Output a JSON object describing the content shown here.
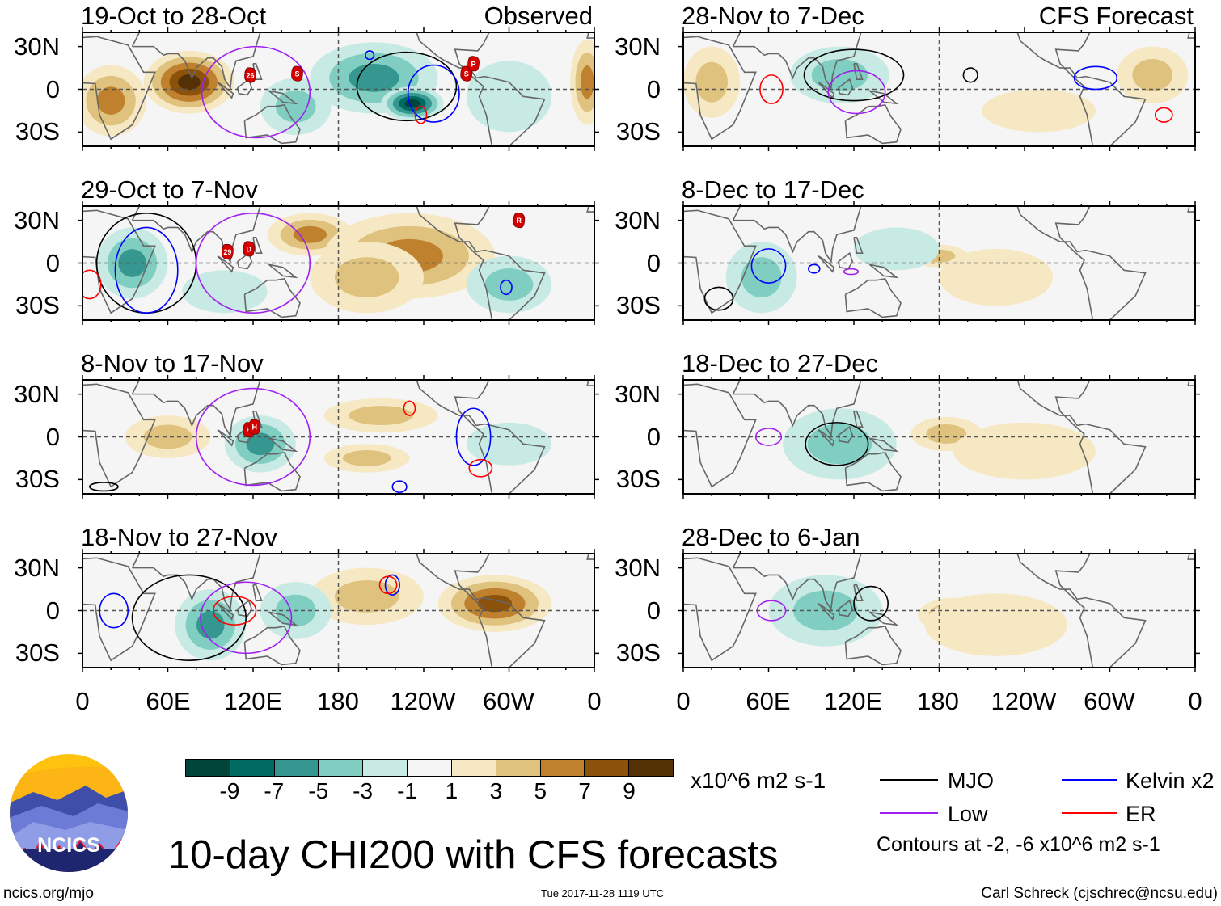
{
  "figure": {
    "title": "10-day CHI200 with CFS forecasts",
    "units": "x10^6 m2 s-1",
    "contour_note": "Contours at -2, -6 x10^6 m2 s-1",
    "site": "ncics.org/mjo",
    "timestamp": "Tue 2017-11-28 1119 UTC",
    "author": "Carl Schreck (cjschrec@ncsu.edu)",
    "logo_text": "NCICS",
    "observed_label": "Observed",
    "forecast_label": "CFS Forecast"
  },
  "axes": {
    "lat_labels": [
      "30N",
      "0",
      "30S"
    ],
    "lon_labels": [
      "0",
      "60E",
      "120E",
      "180",
      "120W",
      "60W",
      "0"
    ]
  },
  "colorbar": {
    "colors": [
      "#00443a",
      "#006b61",
      "#35978f",
      "#80cdc1",
      "#c7eae5",
      "#f5f5f5",
      "#f6e8c3",
      "#dfc27d",
      "#bf812d",
      "#8c510a",
      "#543005"
    ],
    "labels": [
      "-9",
      "-7",
      "-5",
      "-3",
      "-1",
      "1",
      "3",
      "5",
      "7",
      "9"
    ]
  },
  "legend": [
    {
      "label": "MJO",
      "color": "#000000"
    },
    {
      "label": "Kelvin x2",
      "color": "#0000ff"
    },
    {
      "label": "Low",
      "color": "#a020f0"
    },
    {
      "label": "ER",
      "color": "#ff0000"
    }
  ],
  "chart_data": {
    "type": "map",
    "lon_range": [
      0,
      360
    ],
    "lat_range": [
      -40,
      40
    ],
    "panels": [
      {
        "title": "19-Oct to 28-Oct",
        "tag": "observed",
        "anomalies": [
          {
            "lon": 75,
            "lat": 5,
            "v": 9,
            "rx": 32,
            "ry": 22
          },
          {
            "lon": 20,
            "lat": -8,
            "v": 5,
            "rx": 25,
            "ry": 25
          },
          {
            "lon": 355,
            "lat": 5,
            "v": 5,
            "rx": 12,
            "ry": 30
          },
          {
            "lon": 205,
            "lat": 8,
            "v": -5,
            "rx": 45,
            "ry": 25
          },
          {
            "lon": 232,
            "lat": -10,
            "v": -9,
            "rx": 22,
            "ry": 12
          },
          {
            "lon": 150,
            "lat": -12,
            "v": -3,
            "rx": 25,
            "ry": 20
          },
          {
            "lon": 300,
            "lat": -5,
            "v": -1,
            "rx": 30,
            "ry": 25
          }
        ],
        "contours": [
          {
            "kind": "MJO",
            "lon": 228,
            "lat": 2,
            "rx": 35,
            "ry": 24
          },
          {
            "kind": "Low",
            "lon": 122,
            "lat": -2,
            "rx": 38,
            "ry": 32
          },
          {
            "kind": "Kelvin",
            "lon": 247,
            "lat": -3,
            "rx": 18,
            "ry": 20
          },
          {
            "kind": "ER",
            "lon": 238,
            "lat": -18,
            "rx": 4,
            "ry": 6
          },
          {
            "kind": "Kelvin",
            "lon": 202,
            "lat": 24,
            "rx": 3,
            "ry": 3
          }
        ],
        "storms": [
          {
            "name": "26",
            "lon": 118,
            "lat": 10
          },
          {
            "name": "S",
            "lon": 151,
            "lat": 11
          },
          {
            "name": "S",
            "lon": 270,
            "lat": 11
          },
          {
            "name": "P",
            "lon": 275,
            "lat": 18
          }
        ]
      },
      {
        "title": "29-Oct to 7-Nov",
        "tag": "observed",
        "anomalies": [
          {
            "lon": 35,
            "lat": 0,
            "v": -5,
            "rx": 25,
            "ry": 25
          },
          {
            "lon": 160,
            "lat": 20,
            "v": 5,
            "rx": 30,
            "ry": 15
          },
          {
            "lon": 230,
            "lat": 5,
            "v": 5,
            "rx": 60,
            "ry": 30
          },
          {
            "lon": 200,
            "lat": -10,
            "v": 3,
            "rx": 40,
            "ry": 25
          },
          {
            "lon": 300,
            "lat": -15,
            "v": -3,
            "rx": 30,
            "ry": 20
          },
          {
            "lon": 100,
            "lat": -20,
            "v": -1,
            "rx": 30,
            "ry": 15
          }
        ],
        "contours": [
          {
            "kind": "MJO",
            "lon": 45,
            "lat": 0,
            "rx": 35,
            "ry": 35
          },
          {
            "kind": "Kelvin",
            "lon": 45,
            "lat": -5,
            "rx": 22,
            "ry": 30
          },
          {
            "kind": "Low",
            "lon": 120,
            "lat": 0,
            "rx": 40,
            "ry": 35
          },
          {
            "kind": "ER",
            "lon": 5,
            "lat": -15,
            "rx": 8,
            "ry": 10
          },
          {
            "kind": "Kelvin",
            "lon": 298,
            "lat": -17,
            "rx": 4,
            "ry": 5
          }
        ],
        "storms": [
          {
            "name": "29",
            "lon": 102,
            "lat": 8
          },
          {
            "name": "D",
            "lon": 117,
            "lat": 10
          },
          {
            "name": "R",
            "lon": 307,
            "lat": 30
          }
        ]
      },
      {
        "title": "8-Nov to 17-Nov",
        "tag": "observed",
        "anomalies": [
          {
            "lon": 125,
            "lat": -5,
            "v": -5,
            "rx": 25,
            "ry": 20
          },
          {
            "lon": 60,
            "lat": 0,
            "v": 3,
            "rx": 30,
            "ry": 15
          },
          {
            "lon": 210,
            "lat": 15,
            "v": 3,
            "rx": 40,
            "ry": 12
          },
          {
            "lon": 200,
            "lat": -15,
            "v": 3,
            "rx": 30,
            "ry": 10
          },
          {
            "lon": 300,
            "lat": -5,
            "v": -1,
            "rx": 30,
            "ry": 15
          }
        ],
        "contours": [
          {
            "kind": "Low",
            "lon": 120,
            "lat": 0,
            "rx": 40,
            "ry": 34
          },
          {
            "kind": "Kelvin",
            "lon": 275,
            "lat": 0,
            "rx": 12,
            "ry": 20
          },
          {
            "kind": "ER",
            "lon": 230,
            "lat": 20,
            "rx": 4,
            "ry": 5
          },
          {
            "kind": "ER",
            "lon": 280,
            "lat": -22,
            "rx": 8,
            "ry": 6
          },
          {
            "kind": "MJO",
            "lon": 15,
            "lat": -35,
            "rx": 10,
            "ry": 3
          },
          {
            "kind": "Kelvin",
            "lon": 223,
            "lat": -35,
            "rx": 5,
            "ry": 4
          }
        ],
        "storms": [
          {
            "name": "K",
            "lon": 117,
            "lat": 5
          },
          {
            "name": "H",
            "lon": 121,
            "lat": 7
          }
        ]
      },
      {
        "title": "18-Nov to 27-Nov",
        "tag": "observed",
        "anomalies": [
          {
            "lon": 90,
            "lat": -10,
            "v": -5,
            "rx": 25,
            "ry": 25
          },
          {
            "lon": 290,
            "lat": 5,
            "v": 7,
            "rx": 40,
            "ry": 20
          },
          {
            "lon": 200,
            "lat": 10,
            "v": 3,
            "rx": 40,
            "ry": 20
          },
          {
            "lon": 150,
            "lat": 0,
            "v": -3,
            "rx": 25,
            "ry": 20
          }
        ],
        "contours": [
          {
            "kind": "MJO",
            "lon": 75,
            "lat": -5,
            "rx": 40,
            "ry": 30
          },
          {
            "kind": "Low",
            "lon": 115,
            "lat": -5,
            "rx": 32,
            "ry": 25
          },
          {
            "kind": "ER",
            "lon": 107,
            "lat": 0,
            "rx": 15,
            "ry": 10
          },
          {
            "kind": "Kelvin",
            "lon": 22,
            "lat": 0,
            "rx": 10,
            "ry": 12
          },
          {
            "kind": "Kelvin",
            "lon": 218,
            "lat": 18,
            "rx": 5,
            "ry": 7
          },
          {
            "kind": "ER",
            "lon": 215,
            "lat": 18,
            "rx": 6,
            "ry": 6
          }
        ],
        "storms": []
      },
      {
        "title": "28-Nov to 7-Dec",
        "tag": "forecast",
        "anomalies": [
          {
            "lon": 110,
            "lat": 10,
            "v": -3,
            "rx": 35,
            "ry": 20
          },
          {
            "lon": 20,
            "lat": 5,
            "v": 3,
            "rx": 20,
            "ry": 25
          },
          {
            "lon": 330,
            "lat": 10,
            "v": 3,
            "rx": 25,
            "ry": 20
          },
          {
            "lon": 250,
            "lat": -15,
            "v": 1,
            "rx": 40,
            "ry": 15
          }
        ],
        "contours": [
          {
            "kind": "MJO",
            "lon": 120,
            "lat": 10,
            "rx": 35,
            "ry": 18
          },
          {
            "kind": "Low",
            "lon": 122,
            "lat": -2,
            "rx": 20,
            "ry": 15
          },
          {
            "kind": "ER",
            "lon": 62,
            "lat": 0,
            "rx": 8,
            "ry": 10
          },
          {
            "kind": "MJO",
            "lon": 202,
            "lat": 10,
            "rx": 5,
            "ry": 5
          },
          {
            "kind": "Kelvin",
            "lon": 290,
            "lat": 8,
            "rx": 15,
            "ry": 8
          },
          {
            "kind": "ER",
            "lon": 338,
            "lat": -18,
            "rx": 6,
            "ry": 5
          }
        ],
        "storms": []
      },
      {
        "title": "8-Dec to 17-Dec",
        "tag": "forecast",
        "anomalies": [
          {
            "lon": 55,
            "lat": -10,
            "v": -3,
            "rx": 25,
            "ry": 25
          },
          {
            "lon": 180,
            "lat": 5,
            "v": 3,
            "rx": 20,
            "ry": 8
          },
          {
            "lon": 220,
            "lat": -10,
            "v": 1,
            "rx": 40,
            "ry": 20
          },
          {
            "lon": 150,
            "lat": 10,
            "v": -1,
            "rx": 30,
            "ry": 15
          }
        ],
        "contours": [
          {
            "kind": "Kelvin",
            "lon": 60,
            "lat": -2,
            "rx": 12,
            "ry": 12
          },
          {
            "kind": "MJO",
            "lon": 25,
            "lat": -25,
            "rx": 10,
            "ry": 8
          },
          {
            "kind": "Kelvin",
            "lon": 92,
            "lat": -4,
            "rx": 4,
            "ry": 3
          },
          {
            "kind": "Low",
            "lon": 118,
            "lat": -6,
            "rx": 5,
            "ry": 2
          }
        ],
        "storms": []
      },
      {
        "title": "18-Dec to 27-Dec",
        "tag": "forecast",
        "anomalies": [
          {
            "lon": 110,
            "lat": -5,
            "v": -3,
            "rx": 40,
            "ry": 25
          },
          {
            "lon": 185,
            "lat": 2,
            "v": 3,
            "rx": 25,
            "ry": 12
          },
          {
            "lon": 240,
            "lat": -10,
            "v": 1,
            "rx": 50,
            "ry": 20
          }
        ],
        "contours": [
          {
            "kind": "MJO",
            "lon": 108,
            "lat": -5,
            "rx": 22,
            "ry": 15
          },
          {
            "kind": "Low",
            "lon": 60,
            "lat": 0,
            "rx": 9,
            "ry": 6
          }
        ],
        "storms": []
      },
      {
        "title": "28-Dec to 6-Jan",
        "tag": "forecast",
        "anomalies": [
          {
            "lon": 100,
            "lat": 0,
            "v": -3,
            "rx": 40,
            "ry": 25
          },
          {
            "lon": 190,
            "lat": -3,
            "v": 5,
            "rx": 25,
            "ry": 12
          },
          {
            "lon": 220,
            "lat": -10,
            "v": 1,
            "rx": 50,
            "ry": 22
          }
        ],
        "contours": [
          {
            "kind": "MJO",
            "lon": 132,
            "lat": 5,
            "rx": 12,
            "ry": 12
          },
          {
            "kind": "Low",
            "lon": 62,
            "lat": 0,
            "rx": 10,
            "ry": 7
          }
        ],
        "storms": []
      }
    ]
  }
}
